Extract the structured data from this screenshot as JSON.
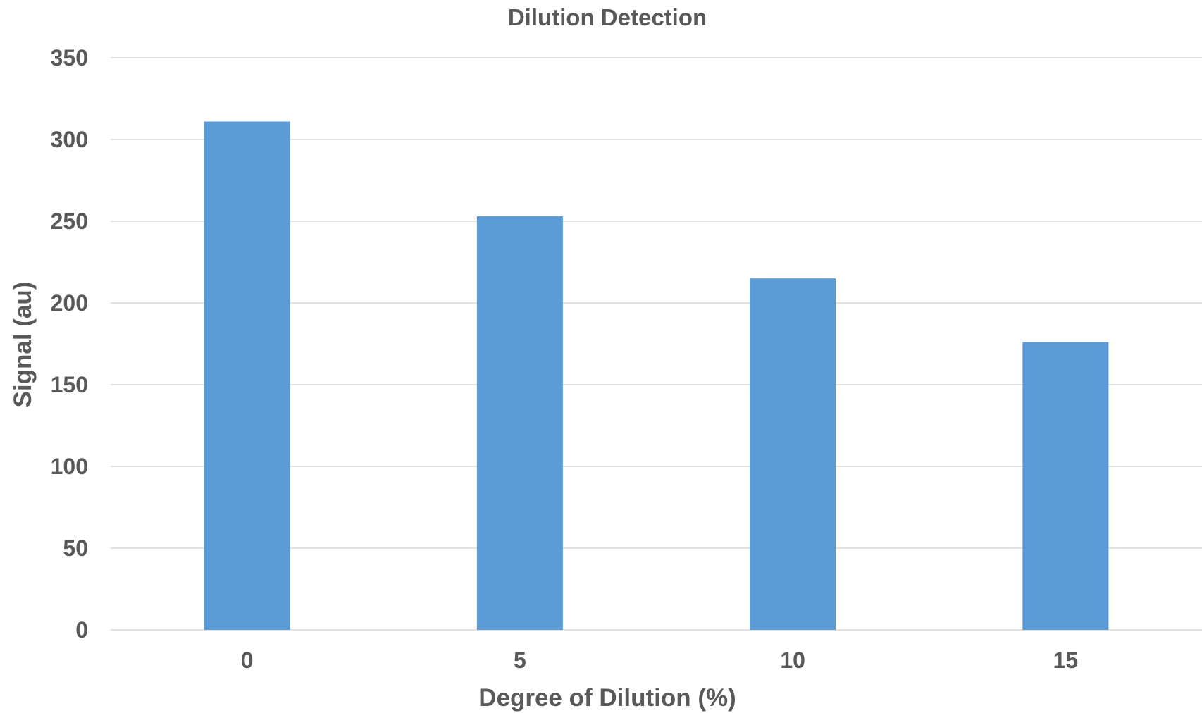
{
  "chart_data": {
    "type": "bar",
    "title": "Dilution Detection",
    "xlabel": "Degree of Dilution (%)",
    "ylabel": "Signal (au)",
    "categories": [
      "0",
      "5",
      "10",
      "15"
    ],
    "values": [
      311,
      253,
      215,
      176
    ],
    "ylim": [
      0,
      350
    ],
    "yticks": [
      "0",
      "50",
      "100",
      "150",
      "200",
      "250",
      "300",
      "350"
    ],
    "grid": true,
    "legend": "none",
    "bar_color": "#5b9bd5"
  }
}
